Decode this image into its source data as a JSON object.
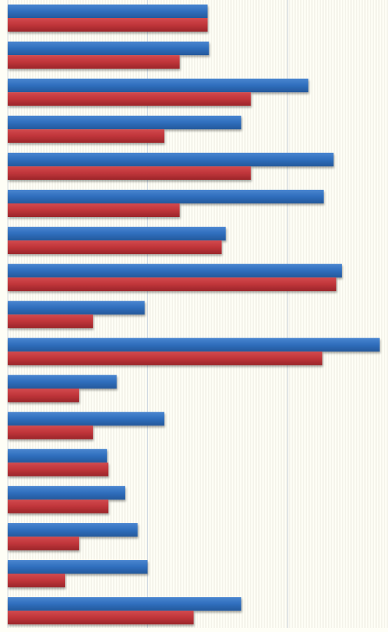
{
  "chart_data": {
    "type": "bar",
    "orientation": "horizontal",
    "categories": [
      "",
      "",
      "",
      "",
      "",
      "",
      "",
      "",
      "",
      "",
      "",
      "",
      "",
      "",
      "",
      "",
      ""
    ],
    "series": [
      {
        "color": "#2f6ebd",
        "values": [
          14.3,
          14.4,
          21.5,
          16.7,
          23.3,
          22.6,
          15.6,
          23.9,
          9.8,
          26.6,
          7.8,
          11.2,
          7.1,
          8.4,
          9.3,
          10.0,
          16.7
        ]
      },
      {
        "color": "#c0353a",
        "values": [
          14.3,
          12.3,
          17.4,
          11.2,
          17.4,
          12.3,
          15.3,
          23.5,
          6.1,
          22.5,
          5.1,
          6.1,
          7.2,
          7.2,
          5.1,
          4.1,
          13.3
        ]
      }
    ],
    "xlim": [
      0,
      27.2
    ],
    "major_gridlines": [
      0,
      10,
      20
    ],
    "grid": true,
    "legend": "none",
    "colors": {
      "background": "#fefef6",
      "minor_grid": "#ecebe0",
      "major_grid": "#cfd8e2"
    }
  }
}
